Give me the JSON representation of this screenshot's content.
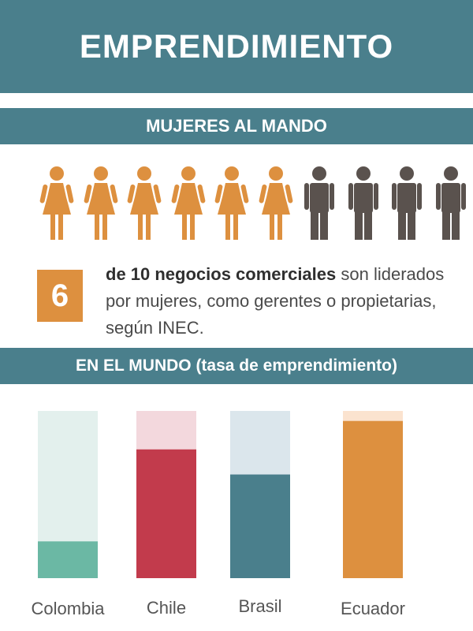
{
  "header": {
    "title": "EMPRENDIMIENTO"
  },
  "section_women": {
    "title": "MUJERES AL MANDO",
    "women_icons": 6,
    "men_icons": 4,
    "number": "6",
    "description_bold": "de 10 negocios comerciales",
    "description_rest": " son liderados por mujeres, como gerentes o propietarias, según INEC."
  },
  "section_world": {
    "title": "EN EL MUNDO (tasa de emprendimiento)"
  },
  "colors": {
    "teal_band": "#4a7f8c",
    "woman": "#dd903f",
    "man": "#5a524e"
  },
  "chart_data": {
    "type": "bar",
    "categories": [
      "Colombia",
      "Chile",
      "Brasil",
      "Ecuador"
    ],
    "values": [
      22,
      77,
      62,
      94
    ],
    "ylim": [
      0,
      100
    ],
    "bar_colors": [
      "#6bb8a4",
      "#c23b4c",
      "#4a7f8c",
      "#dd903f"
    ],
    "track_colors": [
      "#e3f0ed",
      "#f3d8dd",
      "#dbe6ec",
      "#fbe3cf"
    ]
  }
}
